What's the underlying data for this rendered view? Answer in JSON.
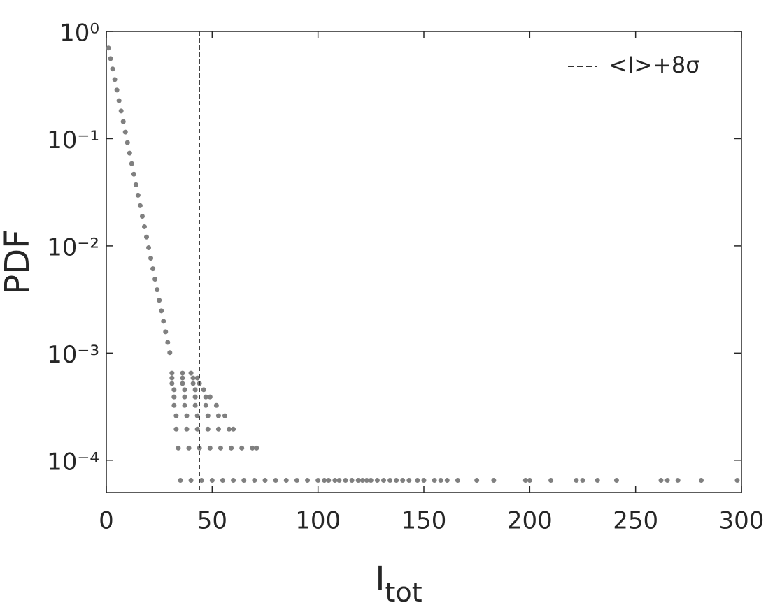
{
  "chart_data": {
    "type": "scatter",
    "ylabel": "PDF",
    "xlabel": {
      "text": "I",
      "subscript": "tot"
    },
    "log_y": true,
    "xlim": [
      0,
      300
    ],
    "ylim": [
      5e-05,
      1
    ],
    "xticks": [
      0,
      50,
      100,
      150,
      200,
      250,
      300
    ],
    "yticks": [
      {
        "value": 1,
        "label": "10⁰"
      },
      {
        "value": 0.1,
        "label": "10⁻¹"
      },
      {
        "value": 0.01,
        "label": "10⁻²"
      },
      {
        "value": 0.001,
        "label": "10⁻³"
      },
      {
        "value": 0.0001,
        "label": "10⁻⁴"
      }
    ],
    "color": "#808080",
    "x": [
      1,
      2,
      3,
      4,
      5,
      6,
      7,
      8,
      9,
      10,
      11,
      12,
      13,
      14,
      15,
      16,
      17,
      18,
      19,
      20,
      21,
      22,
      23,
      24,
      25,
      26,
      27,
      28,
      29,
      30,
      35,
      40,
      45,
      50,
      55,
      60,
      65,
      70,
      75,
      80,
      85,
      90,
      95,
      100,
      103,
      105,
      108,
      110,
      113,
      116,
      119,
      121,
      123,
      125,
      128,
      131,
      134,
      137,
      140,
      143,
      147,
      150,
      155,
      158,
      161,
      166,
      175,
      183,
      198,
      200,
      210,
      222,
      225,
      232,
      241,
      262,
      265,
      270,
      281,
      298,
      34,
      39,
      44,
      49,
      54,
      59,
      64,
      69,
      71,
      33,
      38,
      43,
      48,
      53,
      58,
      60,
      33,
      38,
      43,
      48,
      53,
      56,
      32,
      37,
      42,
      47,
      52,
      32,
      37,
      42,
      47,
      49,
      32,
      37,
      42,
      46,
      31,
      36,
      41,
      44,
      31,
      36,
      41,
      43,
      31,
      36,
      40
    ],
    "values": [
      0.7,
      0.558,
      0.446,
      0.356,
      0.284,
      0.226,
      0.181,
      0.144,
      0.115,
      0.0918,
      0.0733,
      0.0585,
      0.0467,
      0.0372,
      0.0297,
      0.0237,
      0.0189,
      0.0151,
      0.0121,
      0.00962,
      0.00767,
      0.00612,
      0.00489,
      0.0039,
      0.00311,
      0.00248,
      0.00198,
      0.00158,
      0.00126,
      0.00101,
      6.5e-05,
      6.5e-05,
      6.5e-05,
      6.5e-05,
      6.5e-05,
      6.5e-05,
      6.5e-05,
      6.5e-05,
      6.5e-05,
      6.5e-05,
      6.5e-05,
      6.5e-05,
      6.5e-05,
      6.5e-05,
      6.5e-05,
      6.5e-05,
      6.5e-05,
      6.5e-05,
      6.5e-05,
      6.5e-05,
      6.5e-05,
      6.5e-05,
      6.5e-05,
      6.5e-05,
      6.5e-05,
      6.5e-05,
      6.5e-05,
      6.5e-05,
      6.5e-05,
      6.5e-05,
      6.5e-05,
      6.5e-05,
      6.5e-05,
      6.5e-05,
      6.5e-05,
      6.5e-05,
      6.5e-05,
      6.5e-05,
      6.5e-05,
      6.5e-05,
      6.5e-05,
      6.5e-05,
      6.5e-05,
      6.5e-05,
      6.5e-05,
      6.5e-05,
      6.5e-05,
      6.5e-05,
      6.5e-05,
      6.5e-05,
      0.00013,
      0.00013,
      0.00013,
      0.00013,
      0.00013,
      0.00013,
      0.00013,
      0.00013,
      0.00013,
      0.000195,
      0.000195,
      0.000195,
      0.000195,
      0.000195,
      0.000195,
      0.000195,
      0.00026,
      0.00026,
      0.00026,
      0.00026,
      0.00026,
      0.00026,
      0.000325,
      0.000325,
      0.000325,
      0.000325,
      0.000325,
      0.00039,
      0.00039,
      0.00039,
      0.00039,
      0.00039,
      0.000455,
      0.000455,
      0.000455,
      0.000455,
      0.00052,
      0.00052,
      0.00052,
      0.00052,
      0.000585,
      0.000585,
      0.000585,
      0.000585,
      0.00065,
      0.00065,
      0.00065
    ],
    "vlines": [
      {
        "x": 44,
        "name": "<I>+8σ",
        "color": "#333333",
        "dashed": true
      }
    ],
    "legend": "upper right"
  }
}
